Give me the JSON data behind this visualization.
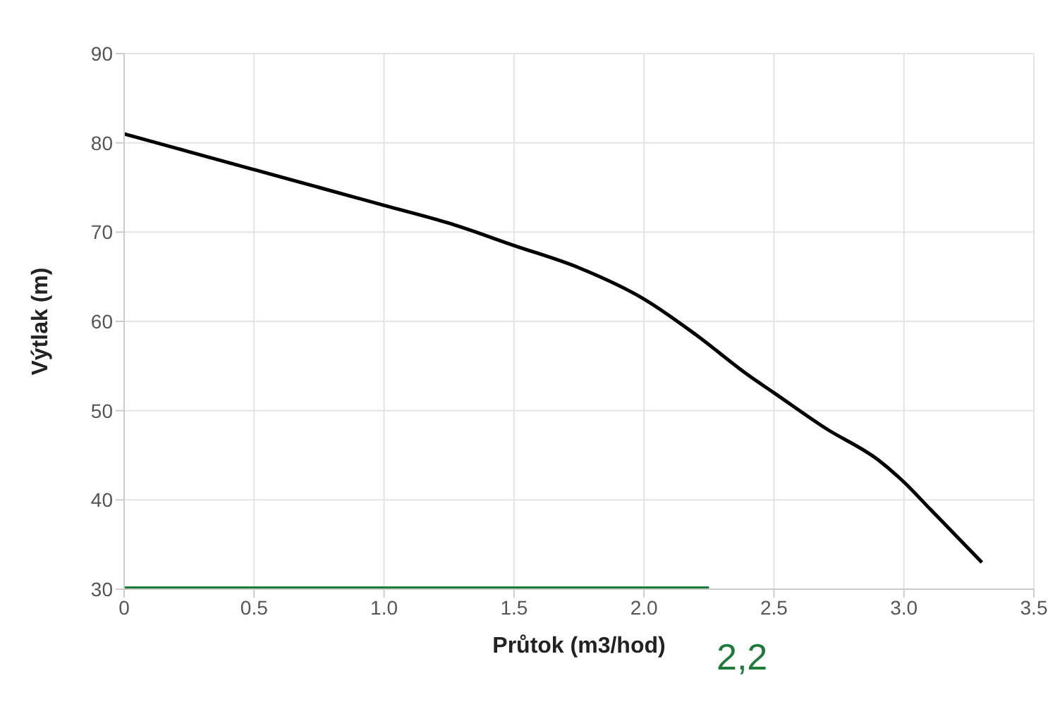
{
  "chart_data": {
    "type": "line",
    "xlabel": "Průtok (m3/hod)",
    "ylabel": "Výtlak (m)",
    "series": [
      {
        "color": "#000000",
        "x": [
          0,
          0.25,
          0.5,
          0.75,
          1.0,
          1.25,
          1.5,
          1.75,
          2.0,
          2.2,
          2.4,
          2.5,
          2.7,
          2.9,
          3.0,
          3.1,
          3.2,
          3.3
        ],
        "values": [
          81,
          79,
          77,
          75,
          73,
          71,
          68.5,
          66,
          62.5,
          58.5,
          54,
          52,
          48,
          44.5,
          42,
          39,
          36,
          33
        ]
      },
      {
        "color": "#1e7b3a",
        "x": [
          0,
          2.25
        ],
        "values": [
          30,
          30
        ]
      }
    ],
    "xlim": [
      0,
      3.5
    ],
    "xticks": [
      {
        "value": 0,
        "label": "0"
      },
      0.5,
      {
        "value": 1,
        "label": "1.0"
      },
      1.5,
      {
        "value": 2,
        "label": "2.0"
      },
      2.5,
      {
        "value": 3,
        "label": "3.0"
      },
      3.5
    ],
    "ylim": [
      30,
      90
    ],
    "yticks": [
      30,
      40,
      50,
      60,
      70,
      80,
      90
    ],
    "grid": true,
    "marker": "none",
    "line_style": "solid",
    "annotations": [
      "2,2"
    ]
  }
}
